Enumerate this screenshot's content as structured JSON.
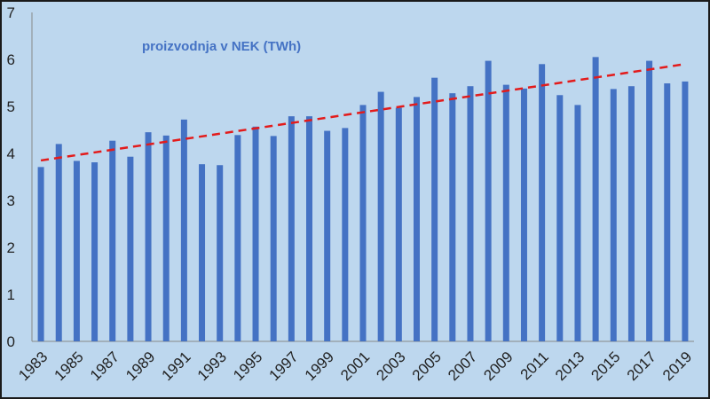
{
  "chart_data": {
    "type": "bar",
    "title": "proizvodnja v NEK (TWh)",
    "xlabel": "",
    "ylabel": "",
    "ylim": [
      0,
      7
    ],
    "y_ticks": [
      0,
      1,
      2,
      3,
      4,
      5,
      6,
      7
    ],
    "x_tick_labels": [
      "1983",
      "1985",
      "1987",
      "1989",
      "1991",
      "1993",
      "1995",
      "1997",
      "1999",
      "2001",
      "2003",
      "2005",
      "2007",
      "2009",
      "2011",
      "2013",
      "2015",
      "2017",
      "2019"
    ],
    "categories": [
      "1983",
      "1984",
      "1985",
      "1986",
      "1987",
      "1988",
      "1989",
      "1990",
      "1991",
      "1992",
      "1993",
      "1994",
      "1995",
      "1996",
      "1997",
      "1998",
      "1999",
      "2000",
      "2001",
      "2002",
      "2003",
      "2004",
      "2005",
      "2006",
      "2007",
      "2008",
      "2009",
      "2010",
      "2011",
      "2012",
      "2013",
      "2014",
      "2015",
      "2016",
      "2017",
      "2018",
      "2019"
    ],
    "values": [
      3.71,
      4.2,
      3.84,
      3.81,
      4.27,
      3.93,
      4.45,
      4.38,
      4.72,
      3.77,
      3.75,
      4.39,
      4.57,
      4.37,
      4.79,
      4.79,
      4.48,
      4.54,
      5.03,
      5.31,
      4.97,
      5.2,
      5.61,
      5.28,
      5.43,
      5.97,
      5.46,
      5.38,
      5.9,
      5.24,
      5.03,
      6.05,
      5.37,
      5.43,
      5.97,
      5.49,
      5.53
    ],
    "trendline": {
      "type": "linear",
      "start": 3.85,
      "end": 5.9
    },
    "grid": false,
    "legend": "none",
    "colors": {
      "bar": "#4472c4",
      "trend": "#e31b1b",
      "background": "#bdd7ee"
    }
  }
}
